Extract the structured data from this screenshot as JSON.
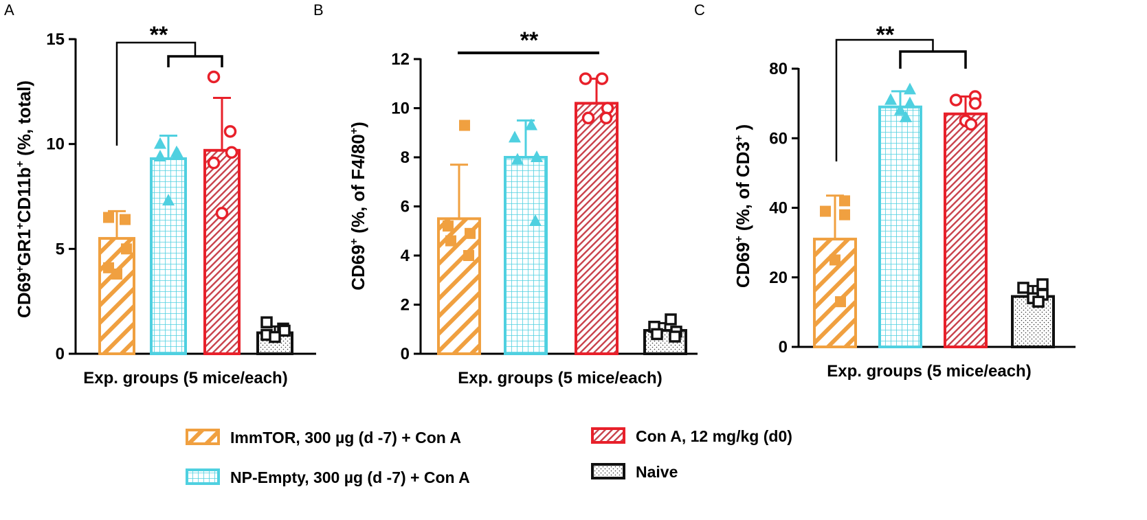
{
  "colors": {
    "immtor": "#f0a040",
    "np_empty": "#4fd0e0",
    "con_a": "#e8202a",
    "naive": "#111111",
    "axis": "#000000"
  },
  "legend": {
    "entries": [
      {
        "key": "immtor",
        "label": "ImmTOR, 300 µg (d -7) + Con A",
        "pattern": "diag-wide"
      },
      {
        "key": "np_empty",
        "label": "NP-Empty, 300 µg (d -7) + Con A",
        "pattern": "grid"
      },
      {
        "key": "con_a",
        "label": "Con A, 12 mg/kg (d0)",
        "pattern": "diag-dense"
      },
      {
        "key": "naive",
        "label": "Naive",
        "pattern": "dots"
      }
    ]
  },
  "chart_data": [
    {
      "panel": "A",
      "type": "bar",
      "title": "",
      "ylabel": {
        "main": "CD69",
        "sup1": "+",
        "mid1": "GR1",
        "sup2": "+",
        "mid2": "CD11b",
        "sup3": "+",
        "tail": " (%, total)"
      },
      "xlabel": "Exp. groups (5 mice/each)",
      "ylim": [
        0,
        15
      ],
      "yticks": [
        0,
        5,
        10,
        15
      ],
      "significance": "**",
      "groups": [
        {
          "key": "immtor",
          "mean": 5.5,
          "sd": 1.3,
          "points": [
            6.5,
            6.4,
            5.0,
            4.1,
            3.8
          ],
          "marker": "square"
        },
        {
          "key": "np_empty",
          "mean": 9.3,
          "sd": 1.1,
          "points": [
            10.0,
            9.6,
            9.5,
            9.4,
            7.3
          ],
          "marker": "triangle"
        },
        {
          "key": "con_a",
          "mean": 9.7,
          "sd": 2.5,
          "points": [
            13.2,
            10.6,
            9.6,
            9.1,
            6.7
          ],
          "marker": "circle"
        },
        {
          "key": "naive",
          "mean": 1.0,
          "sd": 0.3,
          "points": [
            1.5,
            1.2,
            1.1,
            0.9,
            0.8
          ],
          "marker": "square-open"
        }
      ]
    },
    {
      "panel": "B",
      "type": "bar",
      "title": "",
      "ylabel": {
        "main": "CD69",
        "sup1": "+",
        "mid1": " (%, of F4/80",
        "sup2": "+",
        "mid2": ")",
        "sup3": "",
        "tail": ""
      },
      "xlabel": "Exp. groups (5 mice/each)",
      "ylim": [
        0,
        12
      ],
      "yticks": [
        0,
        2,
        4,
        6,
        8,
        10,
        12
      ],
      "significance": "**",
      "groups": [
        {
          "key": "immtor",
          "mean": 5.5,
          "sd": 2.2,
          "points": [
            9.3,
            5.2,
            4.9,
            4.6,
            4.0
          ],
          "marker": "square"
        },
        {
          "key": "np_empty",
          "mean": 8.0,
          "sd": 1.5,
          "points": [
            9.3,
            8.8,
            8.0,
            7.9,
            5.4
          ],
          "marker": "triangle"
        },
        {
          "key": "con_a",
          "mean": 10.2,
          "sd": 1.0,
          "points": [
            11.2,
            11.2,
            10.0,
            9.6,
            9.6
          ],
          "marker": "circle"
        },
        {
          "key": "naive",
          "mean": 0.95,
          "sd": 0.3,
          "points": [
            1.4,
            1.1,
            0.9,
            0.8,
            0.7
          ],
          "marker": "square-open"
        }
      ]
    },
    {
      "panel": "C",
      "type": "bar",
      "title": "",
      "ylabel": {
        "main": "CD69",
        "sup1": "+",
        "mid1": " (%, of CD3",
        "sup2": "+",
        "mid2": " )",
        "sup3": "",
        "tail": ""
      },
      "xlabel": "Exp. groups (5 mice/each)",
      "ylim": [
        0,
        80
      ],
      "yticks": [
        0,
        20,
        40,
        60,
        80
      ],
      "significance": "**",
      "groups": [
        {
          "key": "immtor",
          "mean": 31,
          "sd": 12.5,
          "points": [
            42,
            39,
            38,
            25,
            13
          ],
          "marker": "square"
        },
        {
          "key": "np_empty",
          "mean": 69,
          "sd": 4.5,
          "points": [
            74,
            71,
            70,
            68,
            66
          ],
          "marker": "triangle"
        },
        {
          "key": "con_a",
          "mean": 67,
          "sd": 5,
          "points": [
            72,
            71,
            70,
            65,
            64
          ],
          "marker": "circle"
        },
        {
          "key": "naive",
          "mean": 14.5,
          "sd": 3,
          "points": [
            18,
            17,
            15,
            14,
            13
          ],
          "marker": "square-open"
        }
      ]
    }
  ]
}
